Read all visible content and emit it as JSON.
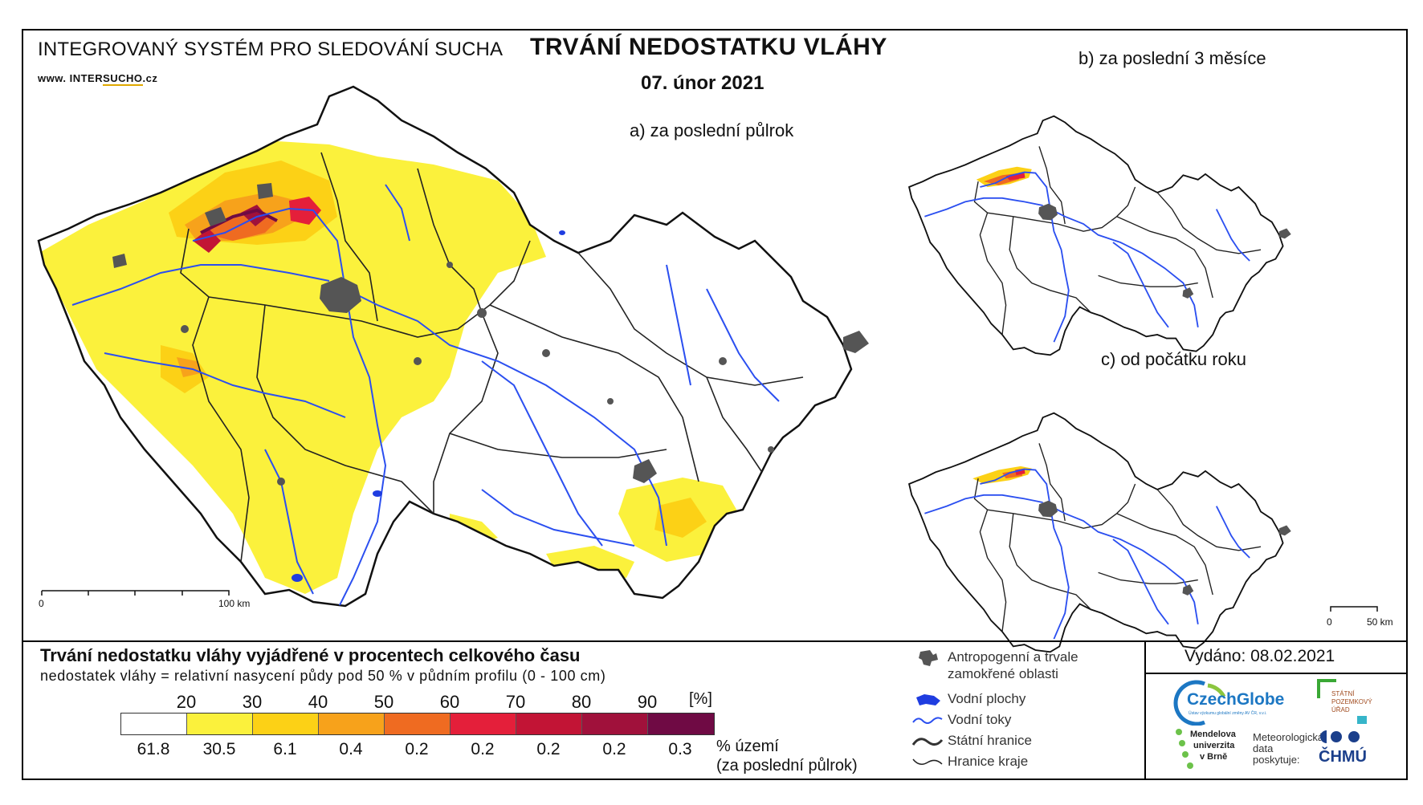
{
  "header": {
    "system_title": "INTEGROVANÝ SYSTÉM PRO SLEDOVÁNÍ SUCHA",
    "www_prefix": "www. INTER",
    "www_brand": "SUCHO",
    "www_suffix": ".cz",
    "main_title": "TRVÁNÍ NEDOSTATKU VLÁHY",
    "date": "07. únor 2021"
  },
  "panels": {
    "a": "a) za poslední půlrok",
    "b": "b) za poslední 3 měsíce",
    "c": "c) od počátku roku"
  },
  "scale_bars": {
    "main": {
      "start": "0",
      "end": "100 km"
    },
    "small": {
      "start": "0",
      "end": "50 km"
    }
  },
  "legend": {
    "title": "Trvání nedostatku vláhy vyjádřené v procentech celkového času",
    "subtitle": "nedostatek vláhy = relativní nasycení půdy pod 50 % v půdním profilu (0 - 100 cm)",
    "unit": "[%]",
    "thresholds": [
      "20",
      "30",
      "40",
      "50",
      "60",
      "70",
      "80",
      "90"
    ],
    "colors": [
      "#ffffff",
      "#fbf13c",
      "#fcd116",
      "#f7a21b",
      "#ef6b21",
      "#e41f3a",
      "#c21435",
      "#a0113b",
      "#6f0a44"
    ],
    "area_percent": [
      "61.8",
      "30.5",
      "6.1",
      "0.4",
      "0.2",
      "0.2",
      "0.2",
      "0.2",
      "0.3"
    ],
    "area_note_line1": "% území",
    "area_note_line2": "(za poslední půlrok)"
  },
  "symbols": {
    "anthropogenic_line1": "Antropogenní a trvale",
    "anthropogenic_line2": "zamokřené oblasti",
    "water_bodies": "Vodní plochy",
    "rivers": "Vodní toky",
    "state_border": "Státní hranice",
    "region_border": "Hranice kraje",
    "anthropogenic_icon": "gray-blob-icon",
    "water_icon": "blue-blob-icon",
    "river_icon": "blue-wave-icon",
    "state_border_icon": "double-wave-icon",
    "region_border_icon": "single-wave-icon"
  },
  "issued": "Vydáno: 08.02.2021",
  "logos": {
    "czechglobe": "CzechGlobe",
    "czechglobe_sub": "Ústav výzkumu globální změny AV ČR, v.v.i.",
    "spu_line1": "STÁTNÍ",
    "spu_line2": "POZEMKOVÝ",
    "spu_line3": "ÚŘAD",
    "mendel_line1": "Mendelova",
    "mendel_line2": "univerzita",
    "mendel_line3": "v Brně",
    "meteo_line1": "Meteorologická",
    "meteo_line2": "data",
    "meteo_line3": "poskytuje:",
    "chmu": "ČHMÚ"
  }
}
